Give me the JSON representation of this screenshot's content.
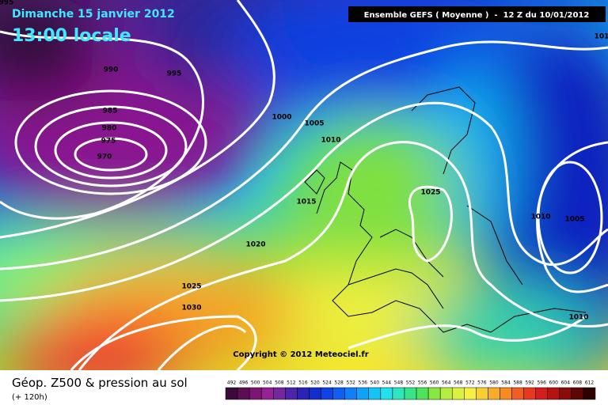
{
  "header": {
    "date": "Dimanche 15 janvier 2012",
    "time": "13:00 locale",
    "model": "Ensemble GEFS ( Moyenne )  -  12 Z du 10/01/2012"
  },
  "isobar_labels": [
    "995",
    "990",
    "995",
    "985",
    "980",
    "975",
    "970",
    "1000",
    "1005",
    "1010",
    "1015",
    "1020",
    "1025",
    "1030",
    "1025",
    "1010",
    "1005",
    "1010",
    "101"
  ],
  "copyright": "Copyright © 2012 Meteociel.fr",
  "footer": {
    "title": "Géop. Z500 & pression au sol",
    "lead": "(+ 120h)"
  },
  "colorbar": {
    "labels": [
      492,
      496,
      500,
      504,
      508,
      512,
      516,
      520,
      524,
      528,
      532,
      536,
      540,
      544,
      548,
      552,
      556,
      560,
      564,
      568,
      572,
      576,
      580,
      584,
      588,
      592,
      596,
      600,
      604,
      608,
      612
    ]
  }
}
